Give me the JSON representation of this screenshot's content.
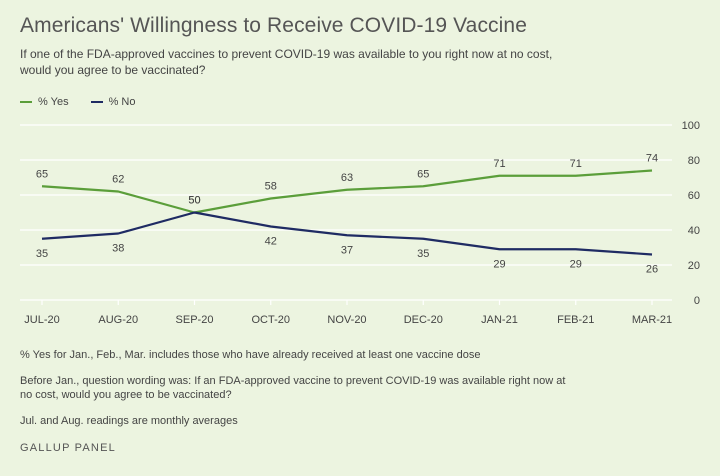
{
  "header": {
    "title": "Americans' Willingness to Receive COVID-19 Vaccine",
    "subtitle": "If one of the FDA-approved vaccines to prevent COVID-19 was available to you right now at no cost, would you agree to be vaccinated?"
  },
  "legend": {
    "yes_label": "% Yes",
    "no_label": "% No"
  },
  "colors": {
    "yes": "#5b9e3a",
    "no": "#1f2b63",
    "grid": "#ffffff",
    "background": "#ecf4e0"
  },
  "chart_data": {
    "type": "line",
    "title": "Americans' Willingness to Receive COVID-19 Vaccine",
    "categories": [
      "JUL-20",
      "AUG-20",
      "SEP-20",
      "OCT-20",
      "NOV-20",
      "DEC-20",
      "JAN-21",
      "FEB-21",
      "MAR-21"
    ],
    "series": [
      {
        "name": "% Yes",
        "values": [
          65,
          62,
          50,
          58,
          63,
          65,
          71,
          71,
          74
        ]
      },
      {
        "name": "% No",
        "values": [
          35,
          38,
          50,
          42,
          37,
          35,
          29,
          29,
          26
        ]
      }
    ],
    "ylim": [
      0,
      100
    ],
    "yticks": [
      0,
      20,
      40,
      60,
      80,
      100
    ],
    "y_axis_side": "right",
    "grid": true,
    "legend_position": "top-left"
  },
  "notes": [
    "% Yes for Jan., Feb., Mar. includes those who have already received at least one vaccine dose",
    "Before Jan., question wording was: If an FDA-approved vaccine to prevent COVID-19 was available right now at no cost, would you agree to be vaccinated?",
    "Jul. and Aug. readings are monthly averages"
  ],
  "source": "GALLUP PANEL"
}
